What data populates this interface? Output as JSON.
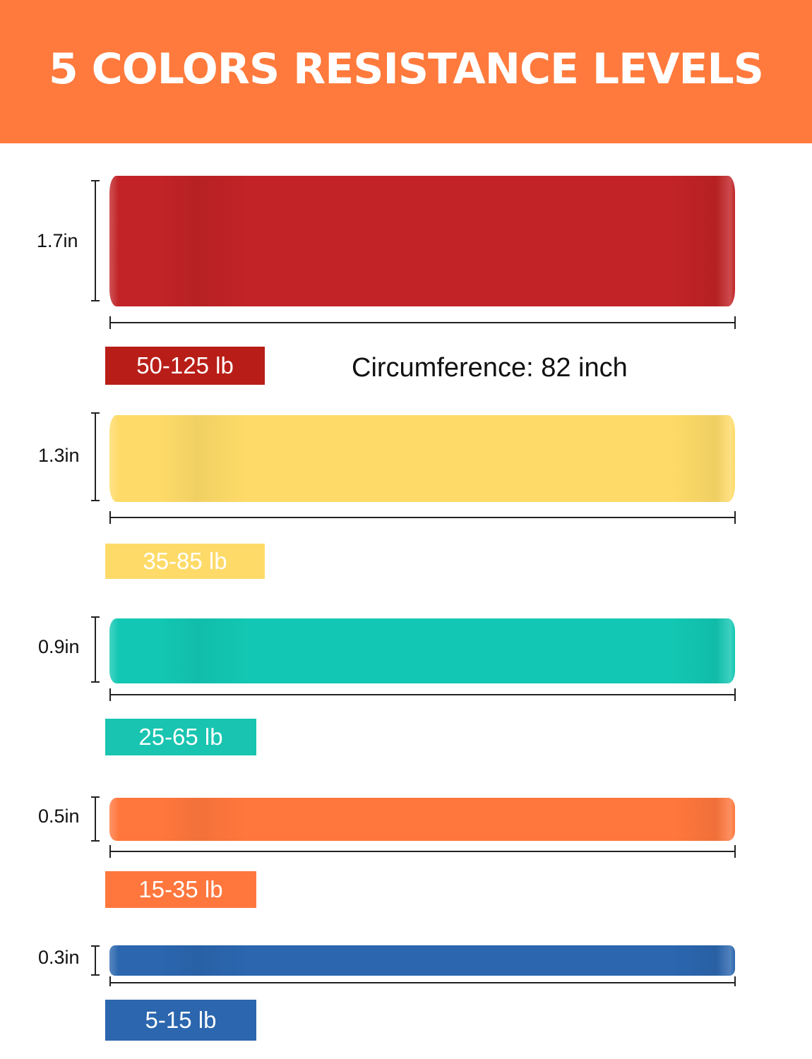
{
  "header": {
    "title": "5 COLORS RESISTANCE LEVELS",
    "background_color": "#ff7a3c"
  },
  "circumference": "Circumference: 82 inch",
  "bands": [
    {
      "width": "1.7in",
      "weight": "50-125 lb",
      "color": "#c12326",
      "label_color": "#b81e17"
    },
    {
      "width": "1.3in",
      "weight": "35-85 lb",
      "color": "#fedb68",
      "label_color": "#fedb68"
    },
    {
      "width": "0.9in",
      "weight": "25-65 lb",
      "color": "#12c7b3",
      "label_color": "#19c4b0"
    },
    {
      "width": "0.5in",
      "weight": "15-35 lb",
      "color": "#ff773d",
      "label_color": "#ff773d"
    },
    {
      "width": "0.3in",
      "weight": "5-15 lb",
      "color": "#2b66ae",
      "label_color": "#2b66ae"
    }
  ]
}
